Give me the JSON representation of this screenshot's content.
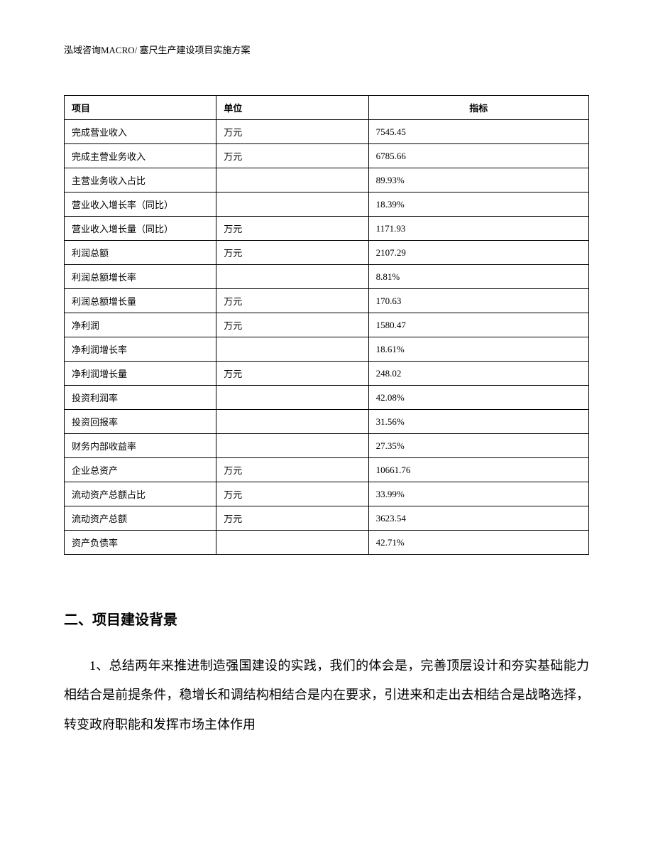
{
  "header": {
    "text": "泓域咨询MACRO/ 塞尺生产建设项目实施方案"
  },
  "table": {
    "columns": [
      "项目",
      "单位",
      "指标"
    ],
    "rows": [
      {
        "item": "完成营业收入",
        "unit": "万元",
        "indicator": "7545.45"
      },
      {
        "item": "完成主营业务收入",
        "unit": "万元",
        "indicator": "6785.66"
      },
      {
        "item": "主营业务收入占比",
        "unit": "",
        "indicator": "89.93%"
      },
      {
        "item": "营业收入增长率（同比）",
        "unit": "",
        "indicator": "18.39%"
      },
      {
        "item": "营业收入增长量（同比）",
        "unit": "万元",
        "indicator": "1171.93"
      },
      {
        "item": "利润总额",
        "unit": "万元",
        "indicator": "2107.29"
      },
      {
        "item": "利润总额增长率",
        "unit": "",
        "indicator": "8.81%"
      },
      {
        "item": "利润总额增长量",
        "unit": "万元",
        "indicator": "170.63"
      },
      {
        "item": "净利润",
        "unit": "万元",
        "indicator": "1580.47"
      },
      {
        "item": "净利润增长率",
        "unit": "",
        "indicator": "18.61%"
      },
      {
        "item": "净利润增长量",
        "unit": "万元",
        "indicator": "248.02"
      },
      {
        "item": "投资利润率",
        "unit": "",
        "indicator": "42.08%"
      },
      {
        "item": "投资回报率",
        "unit": "",
        "indicator": "31.56%"
      },
      {
        "item": "财务内部收益率",
        "unit": "",
        "indicator": "27.35%"
      },
      {
        "item": "企业总资产",
        "unit": "万元",
        "indicator": "10661.76"
      },
      {
        "item": "流动资产总额占比",
        "unit": "万元",
        "indicator": "33.99%"
      },
      {
        "item": "流动资产总额",
        "unit": "万元",
        "indicator": "3623.54"
      },
      {
        "item": "资产负债率",
        "unit": "",
        "indicator": "42.71%"
      }
    ]
  },
  "section": {
    "heading": "二、项目建设背景",
    "paragraph": "1、总结两年来推进制造强国建设的实践，我们的体会是，完善顶层设计和夯实基础能力相结合是前提条件，稳增长和调结构相结合是内在要求，引进来和走出去相结合是战略选择，转变政府职能和发挥市场主体作用"
  }
}
